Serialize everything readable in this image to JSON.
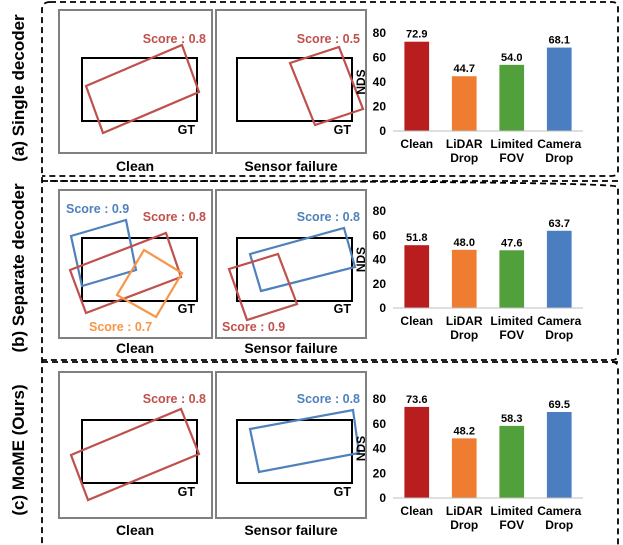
{
  "colors": {
    "red": "#b81e1e",
    "orange": "#ee7d32",
    "green": "#52a03b",
    "blue": "#4a7ec1",
    "box_red": "#c0504d",
    "box_blue": "#4f81bd",
    "box_orange": "#f79646",
    "frame": "#808080"
  },
  "rows": [
    {
      "label": "(a) Single decoder",
      "panels": [
        {
          "caption": "Clean",
          "gt": "GT",
          "boxes": [
            {
              "color": "red",
              "label": "Score : 0.8"
            }
          ]
        },
        {
          "caption": "Sensor failure",
          "gt": "GT",
          "boxes": [
            {
              "color": "red",
              "label": "Score : 0.5"
            }
          ]
        }
      ]
    },
    {
      "label": "(b) Separate decoder",
      "panels": [
        {
          "caption": "Clean",
          "gt": "GT",
          "boxes": [
            {
              "color": "blue",
              "label": "Score : 0.9"
            },
            {
              "color": "red",
              "label": "Score : 0.8"
            },
            {
              "color": "orange",
              "label": "Score : 0.7"
            }
          ]
        },
        {
          "caption": "Sensor failure",
          "gt": "GT",
          "boxes": [
            {
              "color": "blue",
              "label": "Score : 0.8"
            },
            {
              "color": "red",
              "label": "Score : 0.9"
            }
          ]
        }
      ]
    },
    {
      "label": "(c) MoME (Ours)",
      "panels": [
        {
          "caption": "Clean",
          "gt": "GT",
          "boxes": [
            {
              "color": "red",
              "label": "Score : 0.8"
            }
          ]
        },
        {
          "caption": "Sensor failure",
          "gt": "GT",
          "boxes": [
            {
              "color": "blue",
              "label": "Score : 0.8"
            }
          ]
        }
      ]
    }
  ],
  "chart_data": [
    {
      "type": "bar",
      "categories": [
        [
          "Clean"
        ],
        [
          "LiDAR",
          "Drop"
        ],
        [
          "Limited",
          "FOV"
        ],
        [
          "Camera",
          "Drop"
        ]
      ],
      "values": [
        72.9,
        44.7,
        54.0,
        68.1
      ],
      "value_labels": [
        "72.9",
        "44.7",
        "54.0",
        "68.1"
      ],
      "bar_colors": [
        "#b81e1e",
        "#ee7d32",
        "#52a03b",
        "#4a7ec1"
      ],
      "ylabel": "NDS",
      "ylim": [
        0,
        80
      ],
      "yticks": [
        0,
        20,
        40,
        60,
        80
      ],
      "grid": false
    },
    {
      "type": "bar",
      "categories": [
        [
          "Clean"
        ],
        [
          "LiDAR",
          "Drop"
        ],
        [
          "Limited",
          "FOV"
        ],
        [
          "Camera",
          "Drop"
        ]
      ],
      "values": [
        51.8,
        48.0,
        47.6,
        63.7
      ],
      "value_labels": [
        "51.8",
        "48.0",
        "47.6",
        "63.7"
      ],
      "bar_colors": [
        "#b81e1e",
        "#ee7d32",
        "#52a03b",
        "#4a7ec1"
      ],
      "ylabel": "NDS",
      "ylim": [
        0,
        80
      ],
      "yticks": [
        0,
        20,
        40,
        60,
        80
      ],
      "grid": false
    },
    {
      "type": "bar",
      "categories": [
        [
          "Clean"
        ],
        [
          "LiDAR",
          "Drop"
        ],
        [
          "Limited",
          "FOV"
        ],
        [
          "Camera",
          "Drop"
        ]
      ],
      "values": [
        73.6,
        48.2,
        58.3,
        69.5
      ],
      "value_labels": [
        "73.6",
        "48.2",
        "58.3",
        "69.5"
      ],
      "bar_colors": [
        "#b81e1e",
        "#ee7d32",
        "#52a03b",
        "#4a7ec1"
      ],
      "ylabel": "NDS",
      "ylim": [
        0,
        80
      ],
      "yticks": [
        0,
        20,
        40,
        60,
        80
      ],
      "grid": false
    }
  ]
}
